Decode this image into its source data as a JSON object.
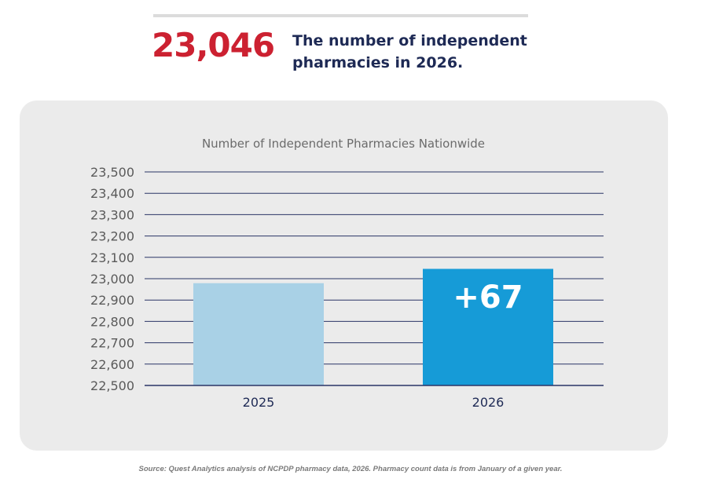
{
  "headline": {
    "number": "23,046",
    "text": "The number of independent pharmacies in 2026."
  },
  "chart_data": {
    "type": "bar",
    "title": "Number of Independent Pharmacies Nationwide",
    "categories": [
      "2025",
      "2026"
    ],
    "values": [
      22979,
      23046
    ],
    "ylim": [
      22500,
      23500
    ],
    "yticks": [
      "23,500",
      "23,400",
      "23,300",
      "23,200",
      "23,100",
      "23,000",
      "22,900",
      "22,800",
      "22,700",
      "22,600",
      "22,500"
    ],
    "ytick_values": [
      23500,
      23400,
      23300,
      23200,
      23100,
      23000,
      22900,
      22800,
      22700,
      22600,
      22500
    ],
    "bar_colors": [
      "#a9d1e6",
      "#169bd7"
    ],
    "annotation": "+67",
    "grid": true,
    "grid_color": "#2a3466"
  },
  "colors": {
    "accent_red": "#cc2131",
    "navy": "#1e2a55",
    "panel_bg": "#ebebeb"
  },
  "source_note": "Source: Quest Analytics analysis of NCPDP pharmacy data, 2026. Pharmacy count data is from January of a given year."
}
